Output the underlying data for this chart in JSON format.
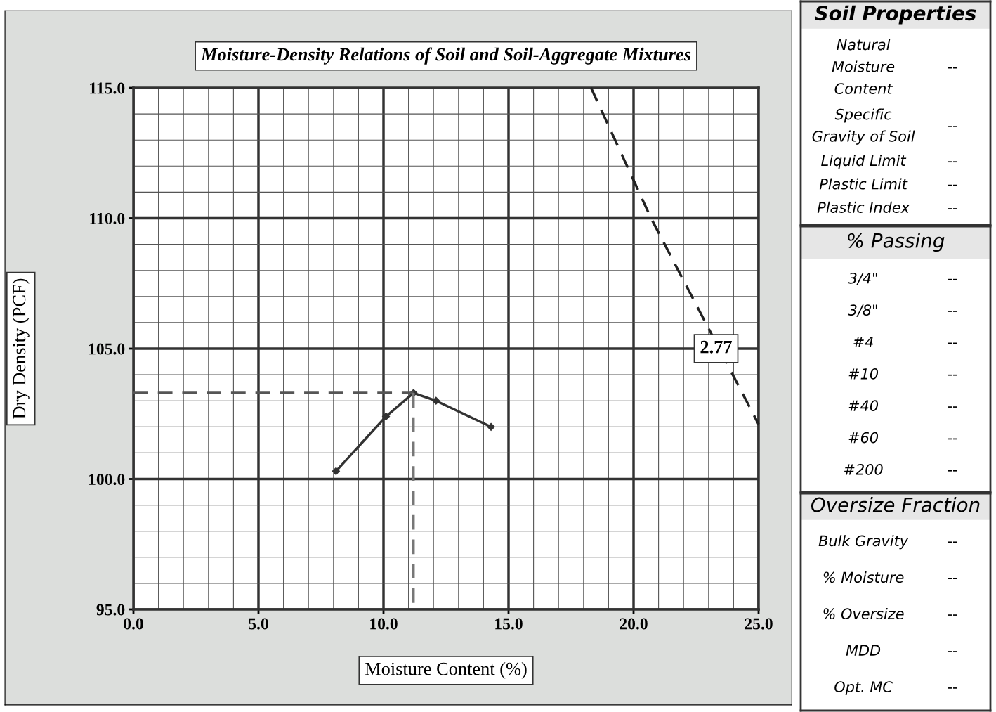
{
  "chart_data": [
    {
      "type": "line",
      "title": "Moisture-Density Relations of Soil and Soil-Aggregate Mixtures",
      "xlabel": "Moisture Content (%)",
      "ylabel": "Dry Density (PCF)",
      "xlim": [
        0,
        25
      ],
      "ylim": [
        95,
        115
      ],
      "xticks": [
        {
          "value": 0,
          "label": "0.0"
        },
        {
          "value": 5,
          "label": "5.0"
        },
        {
          "value": 10,
          "label": "10.0"
        },
        {
          "value": 15,
          "label": "15.0"
        },
        {
          "value": 20,
          "label": "20.0"
        },
        {
          "value": 25,
          "label": "25.0"
        }
      ],
      "yticks": [
        {
          "value": 95,
          "label": "95.0"
        },
        {
          "value": 100,
          "label": "100.0"
        },
        {
          "value": 105,
          "label": "105.0"
        },
        {
          "value": 110,
          "label": "110.0"
        },
        {
          "value": 115,
          "label": "115.0"
        }
      ],
      "grid": true,
      "series": [
        {
          "x": [
            8.1,
            10.1,
            11.2,
            12.1,
            14.3
          ],
          "values": [
            100.3,
            102.4,
            103.3,
            103.0,
            102.0
          ],
          "color": "#333333",
          "marker": "diamond",
          "line_style": "solid"
        },
        {
          "x": [
            0,
            11.2
          ],
          "values": [
            103.3,
            103.3
          ],
          "color": "#555555",
          "line_style": "dashed"
        },
        {
          "x": [
            11.2,
            11.2
          ],
          "values": [
            103.3,
            95
          ],
          "color": "#777777",
          "line_style": "dashed"
        },
        {
          "x": [
            18.3,
            20.7,
            25
          ],
          "values": [
            115,
            110,
            102.1
          ],
          "color": "#222222",
          "line_style": "dashed"
        }
      ],
      "annotations": [
        {
          "text": "2.77",
          "x": 23.3,
          "y": 105
        }
      ]
    },
    {
      "type": "other",
      "title": "Soil Properties",
      "annotations": [
        "Natural\nMoisture\nContent",
        "--",
        "Specific\nGravity of Soil",
        "--",
        "Liquid Limit",
        "--",
        "Plastic Limit",
        "--",
        "Plastic Index",
        "--"
      ]
    },
    {
      "type": "other",
      "title": "% Passing",
      "annotations": [
        "3/4\"",
        "--",
        "3/8\"",
        "--",
        "#4",
        "--",
        "#10",
        "--",
        "#40",
        "--",
        "#60",
        "--",
        "#200",
        "--"
      ]
    },
    {
      "type": "other",
      "title": "Oversize Fraction",
      "annotations": [
        "Bulk Gravity",
        "--",
        "% Moisture",
        "--",
        "% Oversize",
        "--",
        "MDD",
        "--",
        "Opt. MC",
        "--"
      ]
    }
  ]
}
